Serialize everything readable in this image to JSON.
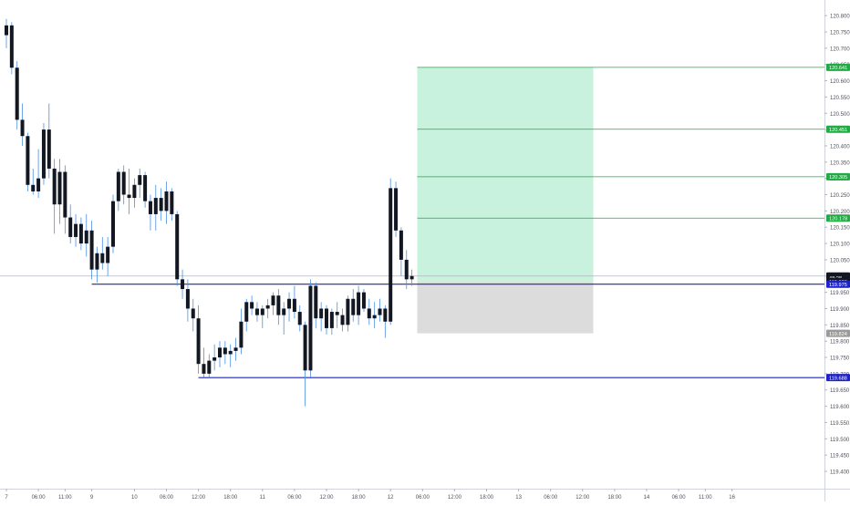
{
  "chart_data": {
    "type": "candlestick",
    "title": "",
    "ylim": [
      119.4,
      120.82
    ],
    "yticks": [
      "120.800",
      "120.750",
      "120.700",
      "120.650",
      "120.600",
      "120.550",
      "120.500",
      "120.450",
      "120.400",
      "120.350",
      "120.300",
      "120.250",
      "120.200",
      "120.150",
      "120.100",
      "120.050",
      "120.000",
      "119.950",
      "119.900",
      "119.850",
      "119.800",
      "119.750",
      "119.700",
      "119.650",
      "119.600",
      "119.550",
      "119.500",
      "119.450",
      "119.400"
    ],
    "xticks": [
      {
        "label": "7",
        "bar": 0
      },
      {
        "label": "06:00",
        "bar": 6
      },
      {
        "label": "11:00",
        "bar": 11
      },
      {
        "label": "9",
        "bar": 16
      },
      {
        "label": "10",
        "bar": 24
      },
      {
        "label": "06:00",
        "bar": 30
      },
      {
        "label": "12:00",
        "bar": 36
      },
      {
        "label": "18:00",
        "bar": 42
      },
      {
        "label": "11",
        "bar": 48
      },
      {
        "label": "06:00",
        "bar": 54
      },
      {
        "label": "12:00",
        "bar": 60
      },
      {
        "label": "18:00",
        "bar": 66
      },
      {
        "label": "12",
        "bar": 72
      },
      {
        "label": "06:00",
        "bar": 78
      },
      {
        "label": "12:00",
        "bar": 84
      },
      {
        "label": "18:00",
        "bar": 90
      },
      {
        "label": "13",
        "bar": 96
      },
      {
        "label": "06:00",
        "bar": 102
      },
      {
        "label": "12:00",
        "bar": 108
      },
      {
        "label": "18:00",
        "bar": 114
      },
      {
        "label": "14",
        "bar": 120
      },
      {
        "label": "06:00",
        "bar": 126
      },
      {
        "label": "11:00",
        "bar": 131
      },
      {
        "label": "16",
        "bar": 136
      }
    ],
    "candles": [
      [
        120.74,
        120.79,
        120.7,
        120.77
      ],
      [
        120.77,
        120.78,
        120.62,
        120.64
      ],
      [
        120.64,
        120.66,
        120.45,
        120.48
      ],
      [
        120.48,
        120.53,
        120.4,
        120.43
      ],
      [
        120.43,
        120.44,
        120.26,
        120.28
      ],
      [
        120.28,
        120.33,
        120.25,
        120.26
      ],
      [
        120.26,
        120.39,
        120.24,
        120.3
      ],
      [
        120.3,
        120.47,
        120.28,
        120.45
      ],
      [
        120.45,
        120.53,
        120.3,
        120.33
      ],
      [
        120.33,
        120.36,
        120.13,
        120.22
      ],
      [
        120.22,
        120.36,
        120.16,
        120.32
      ],
      [
        120.32,
        120.34,
        120.13,
        120.18
      ],
      [
        120.18,
        120.22,
        120.1,
        120.12
      ],
      [
        120.12,
        120.19,
        120.09,
        120.16
      ],
      [
        120.16,
        120.18,
        120.08,
        120.1
      ],
      [
        120.1,
        120.19,
        120.06,
        120.14
      ],
      [
        120.14,
        120.17,
        119.99,
        120.02
      ],
      [
        120.02,
        120.09,
        119.98,
        120.07
      ],
      [
        120.07,
        120.12,
        120.02,
        120.04
      ],
      [
        120.04,
        120.12,
        120.0,
        120.09
      ],
      [
        120.09,
        120.25,
        120.07,
        120.23
      ],
      [
        120.23,
        120.33,
        120.2,
        120.32
      ],
      [
        120.32,
        120.34,
        120.22,
        120.25
      ],
      [
        120.25,
        120.33,
        120.19,
        120.24
      ],
      [
        120.24,
        120.3,
        120.21,
        120.28
      ],
      [
        120.28,
        120.33,
        120.24,
        120.31
      ],
      [
        120.31,
        120.32,
        120.21,
        120.23
      ],
      [
        120.23,
        120.25,
        120.14,
        120.19
      ],
      [
        120.19,
        120.28,
        120.14,
        120.24
      ],
      [
        120.24,
        120.27,
        120.17,
        120.2
      ],
      [
        120.2,
        120.29,
        120.16,
        120.26
      ],
      [
        120.26,
        120.27,
        120.17,
        120.19
      ],
      [
        120.19,
        120.2,
        119.97,
        119.99
      ],
      [
        119.99,
        120.02,
        119.93,
        119.96
      ],
      [
        119.96,
        119.99,
        119.86,
        119.9
      ],
      [
        119.9,
        119.93,
        119.83,
        119.87
      ],
      [
        119.87,
        119.91,
        119.7,
        119.73
      ],
      [
        119.73,
        119.78,
        119.69,
        119.7
      ],
      [
        119.7,
        119.76,
        119.69,
        119.74
      ],
      [
        119.74,
        119.79,
        119.71,
        119.75
      ],
      [
        119.75,
        119.8,
        119.72,
        119.78
      ],
      [
        119.78,
        119.8,
        119.73,
        119.76
      ],
      [
        119.76,
        119.79,
        119.72,
        119.77
      ],
      [
        119.77,
        119.81,
        119.74,
        119.78
      ],
      [
        119.78,
        119.9,
        119.76,
        119.86
      ],
      [
        119.86,
        119.93,
        119.83,
        119.92
      ],
      [
        119.92,
        119.94,
        119.88,
        119.9
      ],
      [
        119.9,
        119.92,
        119.86,
        119.88
      ],
      [
        119.88,
        119.91,
        119.84,
        119.9
      ],
      [
        119.9,
        119.93,
        119.87,
        119.91
      ],
      [
        119.91,
        119.95,
        119.88,
        119.94
      ],
      [
        119.94,
        119.96,
        119.85,
        119.88
      ],
      [
        119.88,
        119.92,
        119.82,
        119.9
      ],
      [
        119.9,
        119.95,
        119.86,
        119.93
      ],
      [
        119.93,
        119.97,
        119.87,
        119.89
      ],
      [
        119.89,
        119.91,
        119.83,
        119.85
      ],
      [
        119.85,
        119.86,
        119.6,
        119.71
      ],
      [
        119.71,
        119.99,
        119.69,
        119.97
      ],
      [
        119.97,
        119.98,
        119.84,
        119.87
      ],
      [
        119.87,
        119.92,
        119.83,
        119.9
      ],
      [
        119.9,
        119.91,
        119.82,
        119.84
      ],
      [
        119.84,
        119.9,
        119.82,
        119.89
      ],
      [
        119.89,
        119.92,
        119.84,
        119.88
      ],
      [
        119.88,
        119.9,
        119.83,
        119.85
      ],
      [
        119.85,
        119.94,
        119.83,
        119.93
      ],
      [
        119.93,
        119.96,
        119.86,
        119.88
      ],
      [
        119.88,
        119.97,
        119.85,
        119.95
      ],
      [
        119.95,
        119.96,
        119.89,
        119.9
      ],
      [
        119.9,
        119.93,
        119.85,
        119.87
      ],
      [
        119.87,
        119.92,
        119.84,
        119.88
      ],
      [
        119.88,
        119.93,
        119.86,
        119.9
      ],
      [
        119.9,
        119.91,
        119.81,
        119.86
      ],
      [
        119.86,
        120.3,
        119.85,
        120.27
      ],
      [
        120.27,
        120.29,
        120.12,
        120.14
      ],
      [
        120.14,
        120.15,
        120.0,
        120.05
      ],
      [
        120.05,
        120.08,
        119.96,
        119.99
      ],
      [
        119.99,
        120.02,
        119.97,
        120.0
      ]
    ],
    "price_scale_labels": [
      {
        "text": "120.641",
        "value": 120.641,
        "color": "#22ab45"
      },
      {
        "text": "120.451",
        "value": 120.451,
        "color": "#22ab45"
      },
      {
        "text": "120.305",
        "value": 120.305,
        "color": "#22ab45"
      },
      {
        "text": "120.178",
        "value": 120.178,
        "color": "#22ab45"
      },
      {
        "text": "120.000",
        "value": 120.0,
        "color": "#131722"
      },
      {
        "text": "48:28",
        "value": 119.995,
        "color": "#131722"
      },
      {
        "text": "119.983",
        "value": 119.983,
        "color": "#131722"
      },
      {
        "text": "119.975",
        "value": 119.975,
        "color": "#1e22c8"
      },
      {
        "text": "119.824",
        "value": 119.824,
        "color": "#9a9a9a"
      },
      {
        "text": "119.688",
        "value": 119.688,
        "color": "#1e22c8"
      }
    ],
    "horizontal_lines": [
      {
        "name": "support-line-upper",
        "value": 119.975,
        "from_bar": 16,
        "color": "#1e22c8"
      },
      {
        "name": "support-line-lower",
        "value": 119.688,
        "from_bar": 36,
        "color": "#1e22c8"
      }
    ],
    "position_tool": {
      "from_bar": 77,
      "to_bar": 110,
      "entry": 119.983,
      "stop": 119.824,
      "target": 120.641,
      "take_profit_levels": [
        120.641,
        120.451,
        120.305,
        120.178
      ],
      "profit_color": "#c8f2dd",
      "loss_color": "#dcdcdc",
      "level_color": "#22ab45"
    },
    "current_price": 120.0,
    "colors": {
      "candle_body": "#131722",
      "wick": "#4a90e2",
      "grid": "#eeeeee",
      "axis_text": "#50535e"
    }
  }
}
